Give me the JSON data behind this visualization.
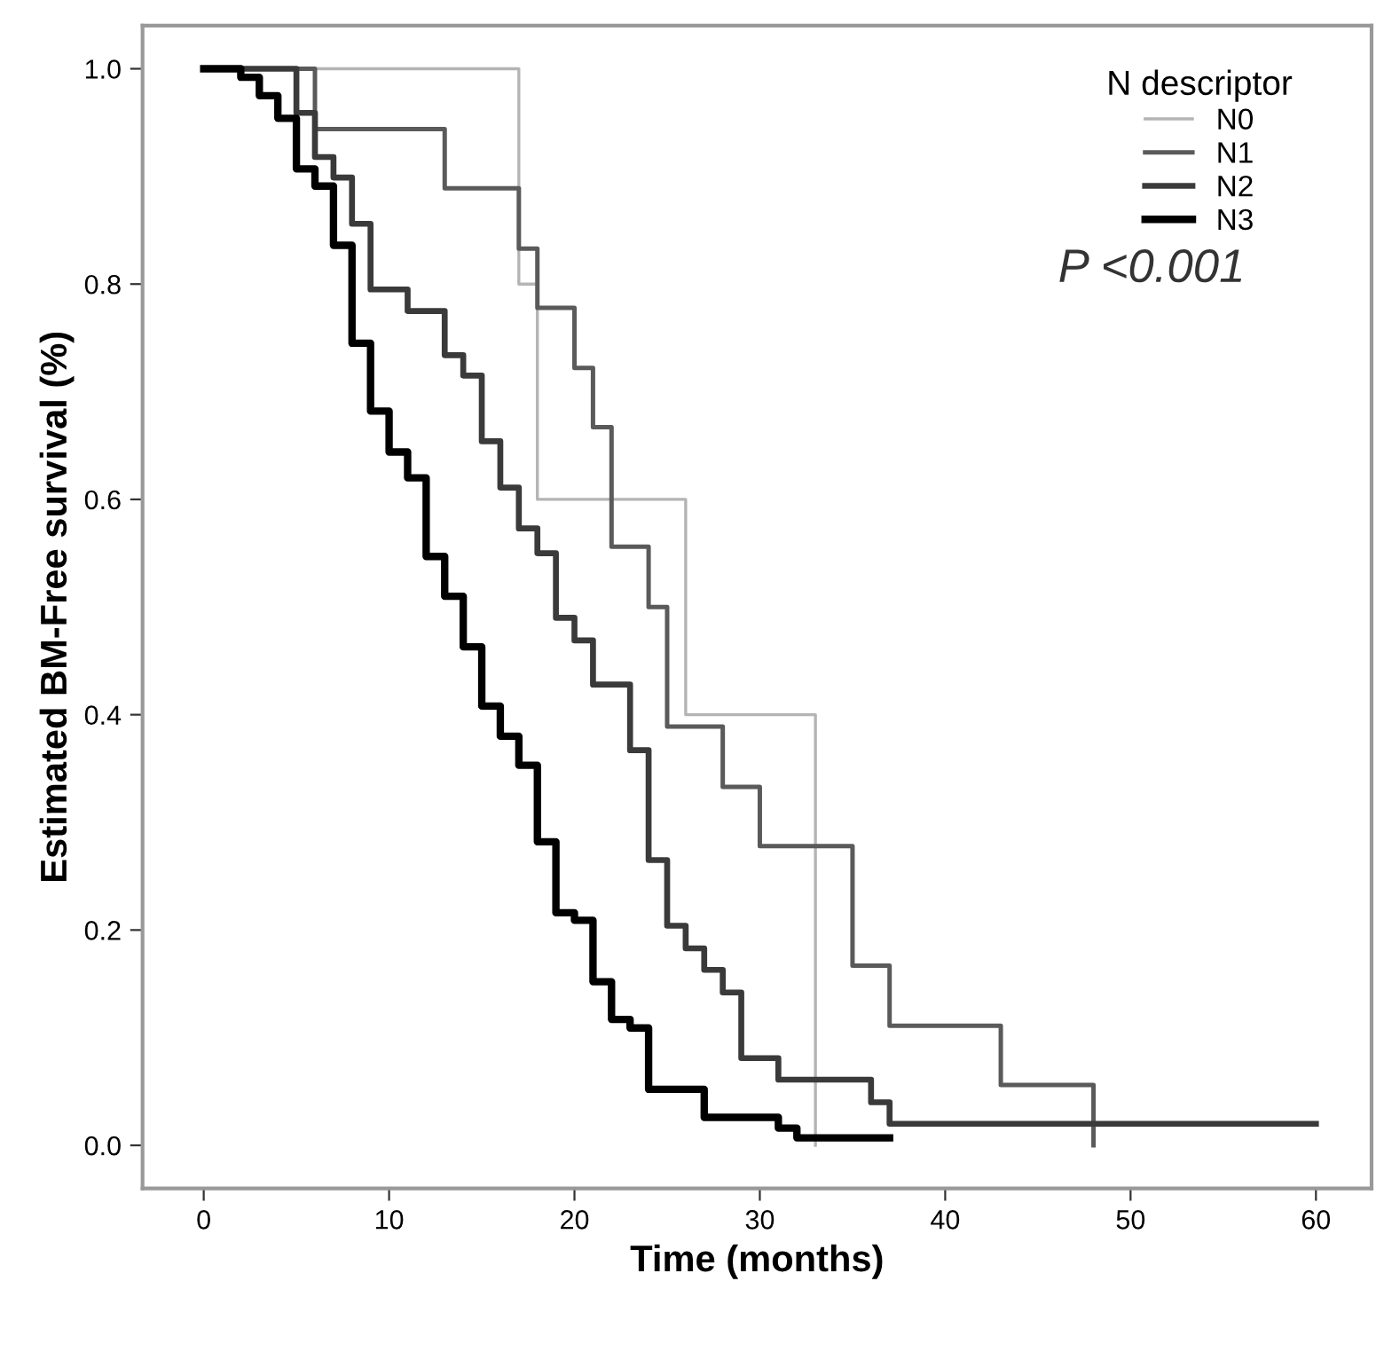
{
  "chart_data": {
    "type": "step",
    "xlabel": "Time (months)",
    "ylabel": "Estimated BM-Free survival (%)",
    "legend_title": "N descriptor",
    "legend": "top right",
    "grid": false,
    "marker": "none",
    "line_style": "solid",
    "xlim": [
      -3.3,
      63
    ],
    "ylim": [
      -0.04,
      1.04
    ],
    "xticks": [
      0,
      10,
      20,
      30,
      40,
      50,
      60
    ],
    "yticks": [
      {
        "value": 0,
        "label": "0.0"
      },
      {
        "value": 0.2,
        "label": "0.2"
      },
      {
        "value": 0.4,
        "label": "0.4"
      },
      {
        "value": 0.6,
        "label": "0.6"
      },
      {
        "value": 0.8,
        "label": "0.8"
      },
      {
        "value": 1,
        "label": "1.0"
      }
    ],
    "annotations": [
      "P <0.001"
    ],
    "series": [
      {
        "name": "N0",
        "color": "#b4b4b4",
        "x": [
          0,
          17,
          18,
          26,
          33
        ],
        "values": [
          1.0,
          0.8,
          0.6,
          0.4,
          0.0
        ]
      },
      {
        "name": "N1",
        "color": "#5a5a5a",
        "x": [
          0,
          6,
          13,
          17,
          18,
          20,
          21,
          22,
          24,
          25,
          28,
          30,
          35,
          37,
          43,
          48
        ],
        "values": [
          1.0,
          0.944,
          0.889,
          0.833,
          0.778,
          0.722,
          0.667,
          0.556,
          0.5,
          0.389,
          0.333,
          0.278,
          0.167,
          0.111,
          0.056,
          0.0
        ]
      },
      {
        "name": "N2",
        "color": "#3a3a3a",
        "x": [
          0,
          5,
          6,
          7,
          8,
          9,
          11,
          13,
          14,
          15,
          16,
          17,
          18,
          19,
          20,
          21,
          23,
          24,
          25,
          26,
          27,
          28,
          29,
          31,
          36,
          37,
          60
        ],
        "values": [
          1.0,
          0.959,
          0.918,
          0.899,
          0.856,
          0.795,
          0.775,
          0.734,
          0.715,
          0.654,
          0.611,
          0.573,
          0.55,
          0.49,
          0.469,
          0.428,
          0.367,
          0.265,
          0.204,
          0.183,
          0.163,
          0.142,
          0.081,
          0.061,
          0.04,
          0.02,
          0.02
        ]
      },
      {
        "name": "N3",
        "color": "#000000",
        "x": [
          0,
          2,
          3,
          4,
          5,
          6,
          7,
          8,
          9,
          10,
          11,
          12,
          13,
          14,
          15,
          16,
          17,
          18,
          19,
          20,
          21,
          22,
          23,
          24,
          27,
          31,
          32,
          37
        ],
        "values": [
          1.0,
          0.992,
          0.975,
          0.954,
          0.907,
          0.891,
          0.836,
          0.745,
          0.682,
          0.644,
          0.62,
          0.547,
          0.51,
          0.463,
          0.408,
          0.38,
          0.353,
          0.282,
          0.216,
          0.209,
          0.152,
          0.117,
          0.109,
          0.052,
          0.026,
          0.016,
          0.007,
          0.007
        ]
      }
    ]
  }
}
